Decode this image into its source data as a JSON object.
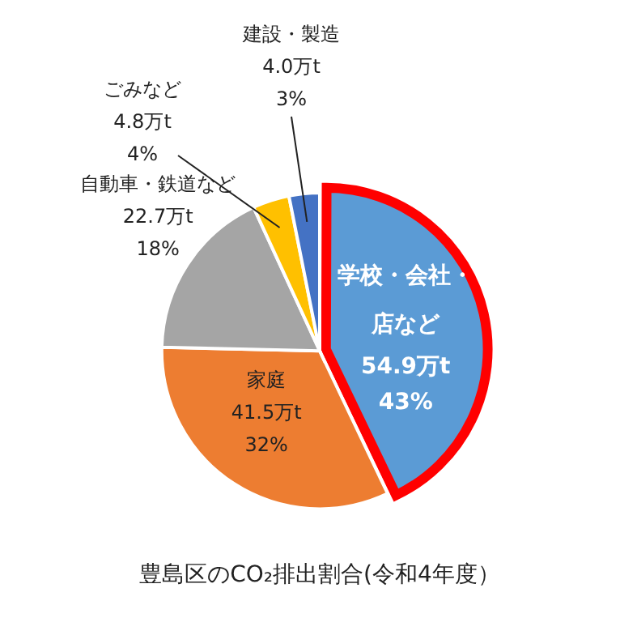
{
  "chart_data": {
    "type": "pie",
    "title": "豊島区のCO₂排出割合(令和4年度）",
    "categories": [
      "学校・会社・店など",
      "家庭",
      "自動車・鉄道など",
      "ごみなど",
      "建設・製造"
    ],
    "values": [
      54.9,
      41.5,
      22.7,
      4.8,
      4.0
    ],
    "value_labels": [
      "54.9万t\n43%",
      "41.5万t\n32%",
      "22.7万t\n18%",
      "4.8万t\n4%",
      "4.0万t\n3%"
    ],
    "colors": [
      "#5b9bd5",
      "#ed7d31",
      "#a5a5a5",
      "#ffc000",
      "#4472c4"
    ],
    "legend": false
  }
}
